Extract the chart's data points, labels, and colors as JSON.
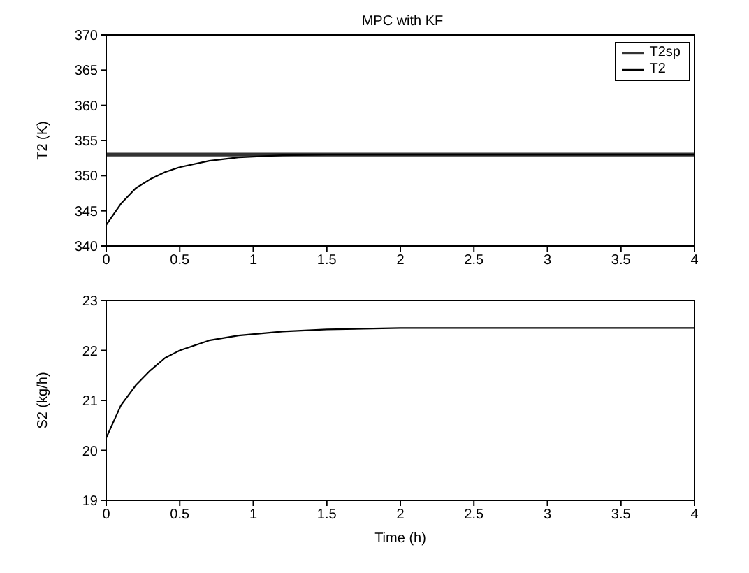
{
  "chart_data": [
    {
      "type": "line",
      "title": "MPC with KF",
      "ylabel": "T2 (K)",
      "xlim": [
        0,
        4
      ],
      "xticks": [
        0,
        0.5,
        1,
        1.5,
        2,
        2.5,
        3,
        3.5,
        4
      ],
      "ylim": [
        340,
        370
      ],
      "yticks": [
        340,
        345,
        350,
        355,
        360,
        365,
        370
      ],
      "legend": "top right",
      "series": [
        {
          "name": "T2sp",
          "color": "#333333",
          "x": [
            0,
            4
          ],
          "values": [
            353,
            353
          ]
        },
        {
          "name": "T2",
          "color": "#000000",
          "x": [
            0,
            0.1,
            0.2,
            0.3,
            0.4,
            0.5,
            0.7,
            0.9,
            1.2,
            1.5,
            2,
            4
          ],
          "values": [
            343,
            346,
            348.2,
            349.5,
            350.5,
            351.2,
            352.1,
            352.6,
            352.9,
            353,
            353,
            353
          ]
        }
      ]
    },
    {
      "type": "line",
      "xlabel": "Time (h)",
      "ylabel": "S2 (kg/h)",
      "xlim": [
        0,
        4
      ],
      "xticks": [
        0,
        0.5,
        1,
        1.5,
        2,
        2.5,
        3,
        3.5,
        4
      ],
      "ylim": [
        19,
        23
      ],
      "yticks": [
        19,
        20,
        21,
        22,
        23
      ],
      "series": [
        {
          "color": "#000000",
          "x": [
            0,
            0.1,
            0.2,
            0.3,
            0.4,
            0.5,
            0.7,
            0.9,
            1.2,
            1.5,
            2,
            4
          ],
          "values": [
            20.25,
            20.9,
            21.3,
            21.6,
            21.85,
            22.0,
            22.2,
            22.3,
            22.38,
            22.42,
            22.45,
            22.45
          ]
        }
      ]
    }
  ]
}
